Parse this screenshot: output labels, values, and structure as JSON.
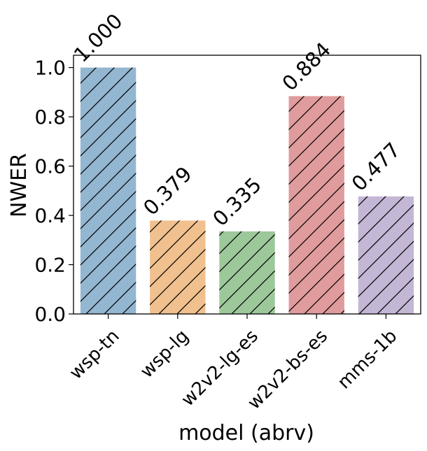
{
  "chart_data": {
    "type": "bar",
    "categories": [
      "wsp-tn",
      "wsp-lg",
      "w2v2-lg-es",
      "w2v2-bs-es",
      "mms-1b"
    ],
    "values": [
      1.0,
      0.379,
      0.335,
      0.884,
      0.477
    ],
    "data_labels": [
      "1.000",
      "0.379",
      "0.335",
      "0.884",
      "0.477"
    ],
    "xlabel": "model (abrv)",
    "ylabel": "NWER",
    "ylim": [
      0,
      1.05
    ],
    "yticks": [
      "0.0",
      "0.2",
      "0.4",
      "0.6",
      "0.8",
      "1.0"
    ],
    "grid": false,
    "bar_colors": [
      "#93b6d1",
      "#f0c08e",
      "#9dc89a",
      "#e09b9c",
      "#c4b6d5"
    ],
    "hatch": "diagonal"
  }
}
